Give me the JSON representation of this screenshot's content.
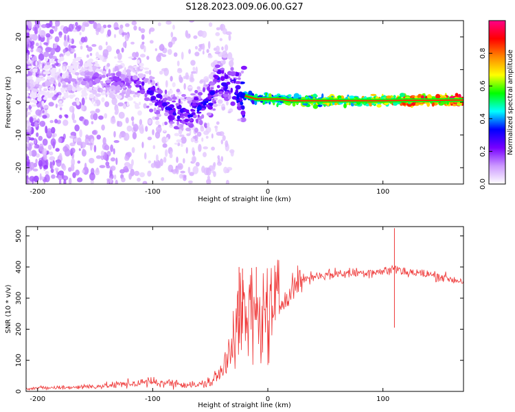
{
  "figure_title": "S128.2023.009.06.00.G27",
  "chart_data": [
    {
      "type": "heatmap",
      "title": "",
      "xlabel": "Height of straight line (km)",
      "ylabel": "Frequency (Hz)",
      "xlim": [
        -210,
        170
      ],
      "ylim": [
        -25,
        25
      ],
      "xticks": [
        -200,
        -100,
        0,
        100
      ],
      "yticks": [
        -20,
        -10,
        0,
        10,
        20
      ],
      "colorbar": {
        "label": "Normalized spectral amplitude",
        "range": [
          0,
          1
        ],
        "ticks": [
          0.0,
          0.2,
          0.4,
          0.6,
          0.8
        ],
        "colors": [
          "#ffffff",
          "#cc99ff",
          "#7700ff",
          "#0000ff",
          "#00ffff",
          "#00ff00",
          "#ffff00",
          "#ff8800",
          "#ff0000",
          "#ff0088"
        ]
      },
      "ridge": {
        "x": [
          -200,
          -180,
          -160,
          -140,
          -120,
          -110,
          -100,
          -90,
          -80,
          -70,
          -60,
          -50,
          -45,
          -40,
          -35,
          -30,
          -25,
          -20,
          -10,
          0,
          10,
          20,
          40,
          60,
          80,
          100,
          120,
          140,
          170
        ],
        "y": [
          5,
          6,
          7,
          7,
          6,
          5,
          2,
          -1,
          -3,
          -4,
          -2,
          0,
          6,
          7,
          5,
          4,
          2,
          2,
          1,
          1,
          1,
          0.5,
          0.5,
          0.5,
          0.5,
          0.5,
          0.6,
          0.6,
          0.7
        ],
        "amplitude": [
          0.1,
          0.12,
          0.15,
          0.2,
          0.2,
          0.25,
          0.3,
          0.28,
          0.3,
          0.3,
          0.32,
          0.35,
          0.3,
          0.35,
          0.3,
          0.35,
          0.4,
          0.45,
          0.5,
          0.6,
          0.55,
          0.6,
          0.65,
          0.7,
          0.72,
          0.75,
          0.85,
          0.9,
          0.92
        ]
      }
    },
    {
      "type": "line",
      "title": "",
      "xlabel": "Height of straight line (km)",
      "ylabel": "SNR (10 * v/v)",
      "xlim": [
        -210,
        170
      ],
      "ylim": [
        0,
        530
      ],
      "xticks": [
        -200,
        -100,
        0,
        100
      ],
      "yticks": [
        0,
        100,
        200,
        300,
        400,
        500
      ],
      "line_color": "#ee3333",
      "series": [
        {
          "x": [
            -210,
            -180,
            -160,
            -140,
            -120,
            -100,
            -80,
            -60,
            -50,
            -40,
            -35,
            -30,
            -25,
            -20,
            -15,
            -10,
            -5,
            0,
            5,
            10,
            15,
            20,
            25,
            30,
            40,
            50,
            60,
            70,
            80,
            90,
            100,
            105,
            110,
            115,
            120,
            130,
            140,
            150,
            160,
            170
          ],
          "y": [
            10,
            12,
            15,
            18,
            25,
            30,
            25,
            20,
            30,
            60,
            120,
            200,
            240,
            230,
            250,
            230,
            240,
            260,
            250,
            270,
            300,
            330,
            350,
            360,
            370,
            375,
            378,
            380,
            382,
            385,
            385,
            390,
            395,
            390,
            385,
            380,
            375,
            370,
            360,
            355
          ]
        }
      ],
      "spikes": [
        {
          "x": -25,
          "y": 400
        },
        {
          "x": -22,
          "y": 395
        },
        {
          "x": -10,
          "y": 400
        },
        {
          "x": 10,
          "y": 270
        },
        {
          "x": 110,
          "y": 525
        },
        {
          "x": 110,
          "y": 205
        }
      ]
    }
  ]
}
